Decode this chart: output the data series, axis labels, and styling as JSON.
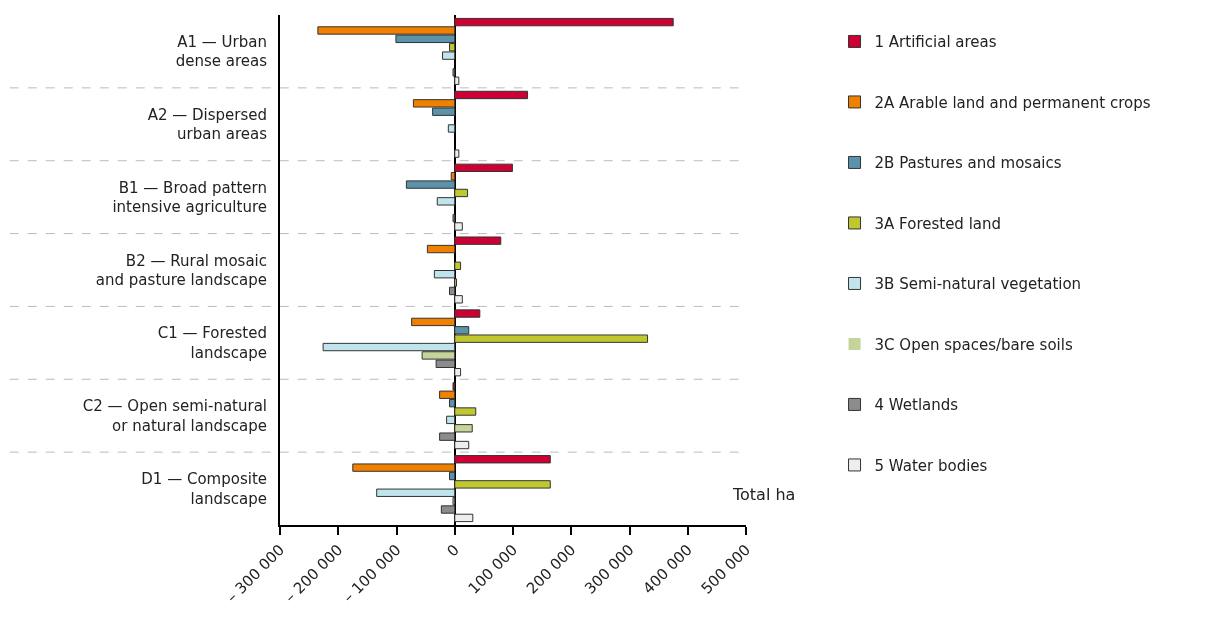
{
  "chart_data": {
    "type": "bar",
    "orientation": "horizontal",
    "xlabel": "Total ha",
    "categories": [
      "A1 — Urban\ndense areas",
      "A2 — Dispersed\nurban areas",
      "B1 — Broad pattern\nintensive agriculture",
      "B2 — Rural mosaic\nand pasture landscape",
      "C1 — Forested\nlandscape",
      "C2 — Open semi-natural\nor natural landscape",
      "D1 — Composite\nlandscape"
    ],
    "series": [
      {
        "name": "1 Artificial areas",
        "color": "#cc0033",
        "values": [
          375000,
          125000,
          99000,
          79000,
          43000,
          -3000,
          164000
        ]
      },
      {
        "name": "2A Arable land and permanent crops",
        "color": "#f08000",
        "values": [
          -235000,
          -71000,
          -6000,
          -47000,
          -74000,
          -26000,
          -175000
        ]
      },
      {
        "name": "2B Pastures and mosaics",
        "color": "#5a93ab",
        "values": [
          -101000,
          -38000,
          -83000,
          0,
          24000,
          -9000,
          -9000
        ]
      },
      {
        "name": "3A Forested land",
        "color": "#c0c830",
        "values": [
          -9000,
          0,
          22000,
          10000,
          331000,
          36000,
          164000
        ]
      },
      {
        "name": "3B Semi-natural vegetation",
        "color": "#c0e4ec",
        "values": [
          -21000,
          -11000,
          -30000,
          -35000,
          -226000,
          -14000,
          -134000
        ]
      },
      {
        "name": "3C Open spaces/bare soils",
        "color": "#c4d49a",
        "values": [
          0,
          0,
          0,
          3000,
          -56000,
          30000,
          -3000
        ]
      },
      {
        "name": "4 Wetlands",
        "color": "#8c8c8c",
        "values": [
          -3000,
          0,
          -3000,
          -9000,
          -32000,
          -26000,
          -23000
        ]
      },
      {
        "name": "5 Water bodies",
        "color": "#eeeeee",
        "values": [
          7000,
          7000,
          13000,
          13000,
          10000,
          24000,
          31000
        ]
      }
    ],
    "xlim": [
      -300000,
      500000
    ],
    "xticks": [
      {
        "value": -300000,
        "label": "– 300 000"
      },
      {
        "value": -200000,
        "label": "– 200 000"
      },
      {
        "value": -100000,
        "label": "– 100 000"
      },
      0,
      {
        "value": 100000,
        "label": "100 000"
      },
      {
        "value": 200000,
        "label": "200 000"
      },
      {
        "value": 300000,
        "label": "300 000"
      },
      {
        "value": 400000,
        "label": "400 000"
      },
      {
        "value": 500000,
        "label": "500 000"
      }
    ],
    "grid": "y",
    "legend": "right"
  }
}
